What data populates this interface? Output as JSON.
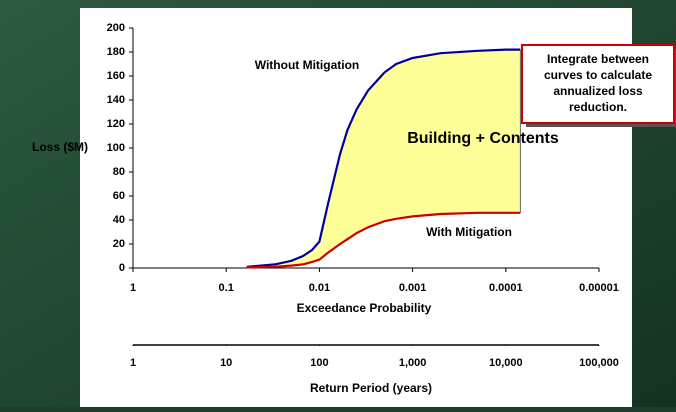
{
  "chart_data": {
    "type": "line",
    "x": [
      0.06,
      0.03,
      0.02,
      0.015,
      0.012,
      0.01,
      0.008,
      0.006,
      0.005,
      0.004,
      0.003,
      0.002,
      0.0015,
      0.001,
      0.0005,
      0.0002,
      0.0001,
      7e-05
    ],
    "series": [
      {
        "name": "Without Mitigation",
        "color": "#000099",
        "values": [
          1,
          3,
          6,
          10,
          15,
          22,
          55,
          95,
          115,
          132,
          148,
          163,
          170,
          175,
          179,
          181,
          182,
          182
        ]
      },
      {
        "name": "With Mitigation",
        "color": "#cc0000",
        "values": [
          0.5,
          1,
          2,
          3,
          5,
          7,
          13,
          20,
          24,
          29,
          34,
          39,
          41,
          43,
          45,
          46,
          46,
          46
        ]
      }
    ],
    "fill_color": "#ffff99",
    "fill_label": "Building + Contents",
    "xscale": "log",
    "xlim": [
      1,
      1e-05
    ],
    "xticks": [
      1,
      0.1,
      0.01,
      0.001,
      0.0001,
      1e-05
    ],
    "xlabel": "Exceedance Probability",
    "ylim": [
      0,
      200
    ],
    "yticks": [
      0,
      20,
      40,
      60,
      80,
      100,
      120,
      140,
      160,
      180,
      200
    ],
    "ylabel": "Loss ($M)",
    "x2lim": [
      1,
      100000
    ],
    "x2ticks": [
      1,
      10,
      100,
      {
        "value": 1000,
        "label": "1,000"
      },
      {
        "value": 10000,
        "label": "10,000"
      },
      {
        "value": 100000,
        "label": "100,000"
      }
    ],
    "x2label": "Return Period (years)",
    "annotation": [
      "Integrate between",
      "curves to calculate",
      "annualized loss",
      "reduction."
    ]
  }
}
